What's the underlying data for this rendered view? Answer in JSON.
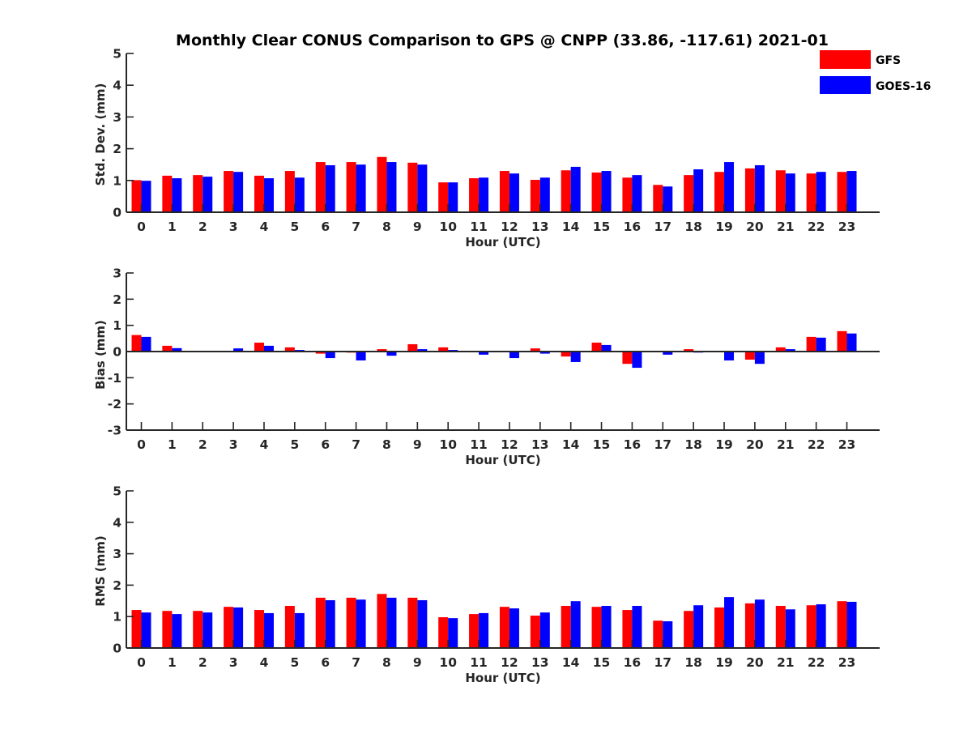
{
  "chart_data": {
    "type": "bar",
    "title": "Monthly Clear CONUS Comparison to GPS @ CNPP (33.86, -117.61) 2021-01",
    "legend": {
      "placement": "top-right",
      "entries": [
        {
          "name": "GFS",
          "color": "#ff0000"
        },
        {
          "name": "GOES-16",
          "color": "#0000ff"
        }
      ]
    },
    "categories": [
      "0",
      "1",
      "2",
      "3",
      "4",
      "5",
      "6",
      "7",
      "8",
      "9",
      "10",
      "11",
      "12",
      "13",
      "14",
      "15",
      "16",
      "17",
      "18",
      "19",
      "20",
      "21",
      "22",
      "23"
    ],
    "panels": [
      {
        "id": "stddev",
        "ylabel": "Std. Dev. (mm)",
        "xlabel": "Hour (UTC)",
        "ylim": [
          0,
          5
        ],
        "yticks": [
          0,
          1,
          2,
          3,
          4,
          5
        ],
        "series": [
          {
            "name": "GFS",
            "values": [
              1.01,
              1.15,
              1.17,
              1.3,
              1.15,
              1.3,
              1.58,
              1.58,
              1.74,
              1.56,
              0.94,
              1.07,
              1.3,
              1.02,
              1.32,
              1.25,
              1.09,
              0.86,
              1.17,
              1.27,
              1.38,
              1.32,
              1.22,
              1.27
            ]
          },
          {
            "name": "GOES-16",
            "values": [
              0.99,
              1.07,
              1.12,
              1.27,
              1.07,
              1.09,
              1.48,
              1.5,
              1.58,
              1.5,
              0.94,
              1.09,
              1.22,
              1.09,
              1.43,
              1.3,
              1.17,
              0.81,
              1.35,
              1.58,
              1.48,
              1.22,
              1.27,
              1.3
            ]
          }
        ]
      },
      {
        "id": "bias",
        "ylabel": "Bias (mm)",
        "xlabel": "Hour (UTC)",
        "ylim": [
          -3,
          3
        ],
        "yticks": [
          -3,
          -2,
          -1,
          0,
          1,
          2,
          3
        ],
        "series": [
          {
            "name": "GFS",
            "values": [
              0.63,
              0.22,
              0.02,
              0.02,
              0.34,
              0.16,
              -0.08,
              -0.04,
              0.09,
              0.28,
              0.16,
              0.0,
              0.0,
              0.12,
              -0.19,
              0.34,
              -0.47,
              0.0,
              0.09,
              -0.03,
              -0.31,
              0.16,
              0.56,
              0.78
            ]
          },
          {
            "name": "GOES-16",
            "values": [
              0.56,
              0.13,
              0.0,
              0.12,
              0.22,
              0.06,
              -0.25,
              -0.34,
              -0.16,
              0.09,
              0.06,
              -0.12,
              -0.25,
              -0.08,
              -0.4,
              0.25,
              -0.62,
              -0.12,
              -0.04,
              -0.34,
              -0.47,
              0.09,
              0.53,
              0.69
            ]
          }
        ]
      },
      {
        "id": "rms",
        "ylabel": "RMS (mm)",
        "xlabel": "Hour (UTC)",
        "ylim": [
          0,
          5
        ],
        "yticks": [
          0,
          1,
          2,
          3,
          4,
          5
        ],
        "series": [
          {
            "name": "GFS",
            "values": [
              1.21,
              1.18,
              1.18,
              1.31,
              1.21,
              1.34,
              1.6,
              1.6,
              1.72,
              1.6,
              0.98,
              1.08,
              1.31,
              1.03,
              1.34,
              1.31,
              1.21,
              0.87,
              1.18,
              1.29,
              1.42,
              1.34,
              1.36,
              1.49
            ]
          },
          {
            "name": "GOES-16",
            "values": [
              1.13,
              1.08,
              1.13,
              1.29,
              1.11,
              1.11,
              1.52,
              1.54,
              1.6,
              1.52,
              0.95,
              1.11,
              1.26,
              1.13,
              1.49,
              1.34,
              1.34,
              0.85,
              1.36,
              1.62,
              1.54,
              1.23,
              1.39,
              1.47
            ]
          }
        ]
      }
    ],
    "grid": false
  }
}
